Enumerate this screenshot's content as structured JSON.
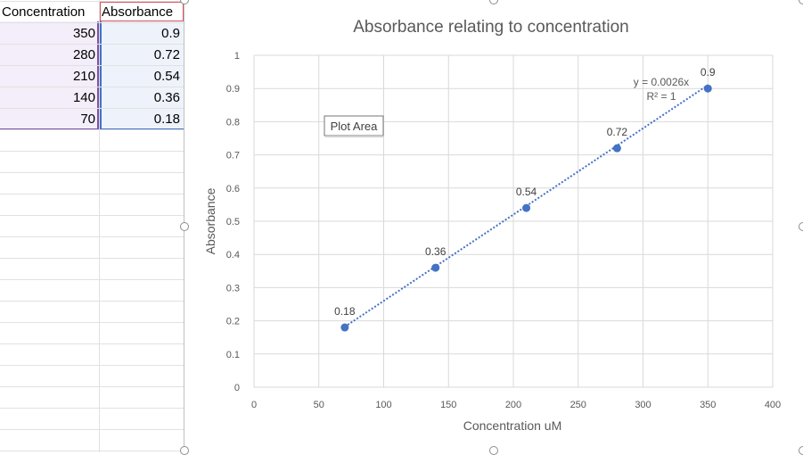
{
  "sheet": {
    "headers": [
      "Concentration",
      "Absorbance"
    ],
    "rows": [
      [
        "350",
        "0.9"
      ],
      [
        "280",
        "0.72"
      ],
      [
        "210",
        "0.54"
      ],
      [
        "140",
        "0.36"
      ],
      [
        "70",
        "0.18"
      ]
    ]
  },
  "tooltip": "Plot Area",
  "chart_data": {
    "type": "scatter",
    "title": "Absorbance relating to concentration",
    "xlabel": "Concentration uM",
    "ylabel": "Absorbance",
    "xlim": [
      0,
      400
    ],
    "ylim": [
      0,
      1
    ],
    "x_ticks": [
      "0",
      "50",
      "100",
      "150",
      "200",
      "250",
      "300",
      "350",
      "400"
    ],
    "y_ticks": [
      "0",
      "0.1",
      "0.2",
      "0.3",
      "0.4",
      "0.5",
      "0.6",
      "0.7",
      "0.8",
      "0.9",
      "1"
    ],
    "grid": true,
    "series": [
      {
        "x": [
          70,
          140,
          210,
          280,
          350
        ],
        "y": [
          0.18,
          0.36,
          0.54,
          0.72,
          0.9
        ],
        "labels": [
          "0.18",
          "0.36",
          "0.54",
          "0.72",
          "0.9"
        ],
        "color": "#4472c4"
      }
    ],
    "trendline": {
      "style": "dotted",
      "color": "#4472c4",
      "slope": 0.0026,
      "equation": "y = 0.0026x",
      "r2": "R² = 1"
    }
  }
}
